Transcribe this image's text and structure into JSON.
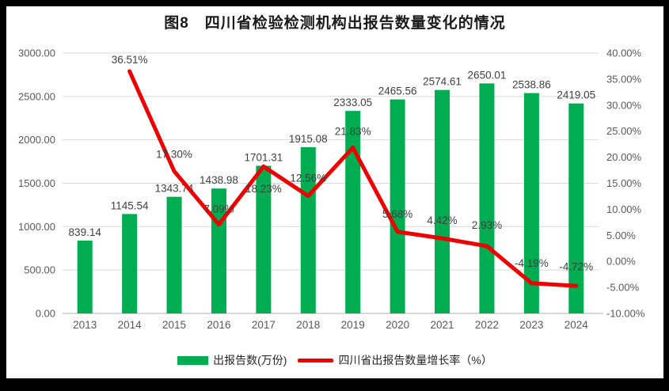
{
  "chart_data": {
    "type": "bar+line",
    "title": "图8　四川省检验检测机构出报告数量变化的情况",
    "categories": [
      "2013",
      "2014",
      "2015",
      "2016",
      "2017",
      "2018",
      "2019",
      "2020",
      "2021",
      "2022",
      "2023",
      "2024"
    ],
    "series": [
      {
        "name": "出报告数(万份)",
        "type": "bar",
        "axis": "left",
        "color": "#00AD50",
        "values": [
          839.14,
          1145.54,
          1343.74,
          1438.98,
          1701.31,
          1915.08,
          2333.05,
          2465.56,
          2574.61,
          2650.01,
          2538.86,
          2419.05
        ],
        "labels": [
          "839.14",
          "1145.54",
          "1343.74",
          "1438.98",
          "1701.31",
          "1915.08",
          "2333.05",
          "2465.56",
          "2574.61",
          "2650.01",
          "2538.86",
          "2419.05"
        ]
      },
      {
        "name": "四川省出报告数量增长率（%）",
        "type": "line",
        "axis": "right",
        "color": "#EE0000",
        "values": [
          null,
          36.51,
          17.3,
          7.09,
          18.23,
          12.56,
          21.83,
          5.68,
          4.42,
          2.93,
          -4.19,
          -4.72
        ],
        "labels": [
          null,
          "36.51%",
          "17.30%",
          "7.09%",
          "18.23%",
          "12.56%",
          "21.83%",
          "5.68%",
          "4.42%",
          "2.93%",
          "-4.19%",
          "-4.72%"
        ]
      }
    ],
    "left_axis": {
      "min": 0,
      "max": 3000,
      "step": 500,
      "ticks": [
        "3000.00",
        "2500.00",
        "2000.00",
        "1500.00",
        "1000.00",
        "500.00",
        "0.00"
      ]
    },
    "right_axis": {
      "min": -10,
      "max": 40,
      "step": 5,
      "ticks": [
        "40.00%",
        "35.00%",
        "30.00%",
        "25.00%",
        "20.00%",
        "15.00%",
        "10.00%",
        "5.00%",
        "0.00%",
        "-5.00%",
        "-10.00%"
      ]
    },
    "grid": true,
    "legend_position": "bottom",
    "colors": {
      "bar": "#00AD50",
      "line": "#EE0000",
      "grid": "#D9D9D9",
      "axis_line": "#AFAFAF",
      "tick_text": "#595959",
      "label_text": "#404040"
    }
  }
}
